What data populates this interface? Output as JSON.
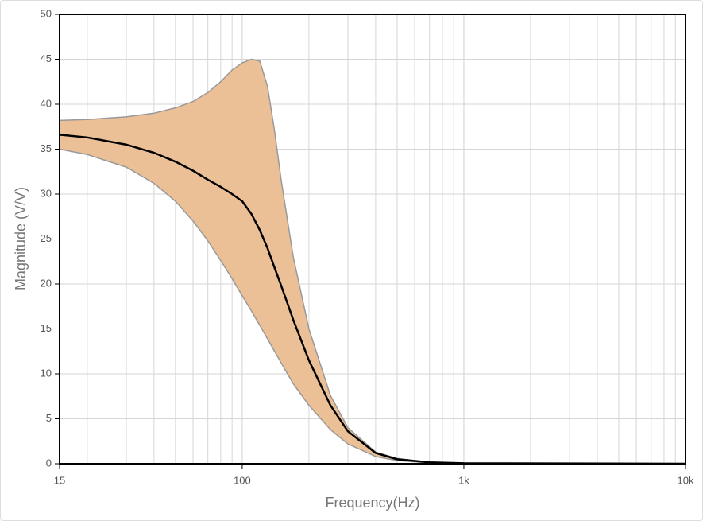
{
  "chart_data": {
    "type": "line",
    "x_label": "Frequency(Hz)",
    "y_label": "Magnitude (V/V)",
    "x": [
      15,
      20,
      30,
      40,
      50,
      60,
      70,
      80,
      90,
      100,
      110,
      120,
      130,
      140,
      150,
      170,
      200,
      250,
      300,
      400,
      500,
      700,
      1000,
      10000
    ],
    "series": [
      {
        "color": "#000000",
        "values": [
          36.6,
          36.3,
          35.5,
          34.6,
          33.6,
          32.6,
          31.6,
          30.8,
          30.0,
          29.2,
          27.8,
          26.0,
          24.0,
          21.8,
          19.8,
          16.0,
          11.5,
          6.5,
          3.6,
          1.2,
          0.5,
          0.15,
          0.05,
          0
        ]
      }
    ],
    "band": {
      "color": "#ecc096",
      "upper": [
        38.2,
        38.3,
        38.6,
        39.0,
        39.6,
        40.3,
        41.3,
        42.5,
        43.8,
        44.6,
        45.0,
        44.8,
        42.0,
        37.0,
        31.5,
        23.0,
        15.0,
        7.6,
        4.0,
        1.3,
        0.6,
        0.15,
        0.05,
        0
      ],
      "lower": [
        35.0,
        34.4,
        33.0,
        31.2,
        29.2,
        27.0,
        24.8,
        22.6,
        20.6,
        18.7,
        17.0,
        15.4,
        13.9,
        12.5,
        11.2,
        8.9,
        6.5,
        3.8,
        2.2,
        0.8,
        0.35,
        0.1,
        0.03,
        0
      ]
    },
    "xlim": [
      15,
      10000
    ],
    "ylim": [
      0,
      50
    ],
    "xlog": true,
    "grid": true,
    "minor_grid": true,
    "xticks": [
      15,
      100,
      {
        "value": 1000,
        "label": "1k"
      },
      {
        "value": 10000,
        "label": "10k"
      }
    ],
    "yticks": [
      0,
      5,
      10,
      15,
      20,
      25,
      30,
      35,
      40,
      45,
      50
    ]
  }
}
